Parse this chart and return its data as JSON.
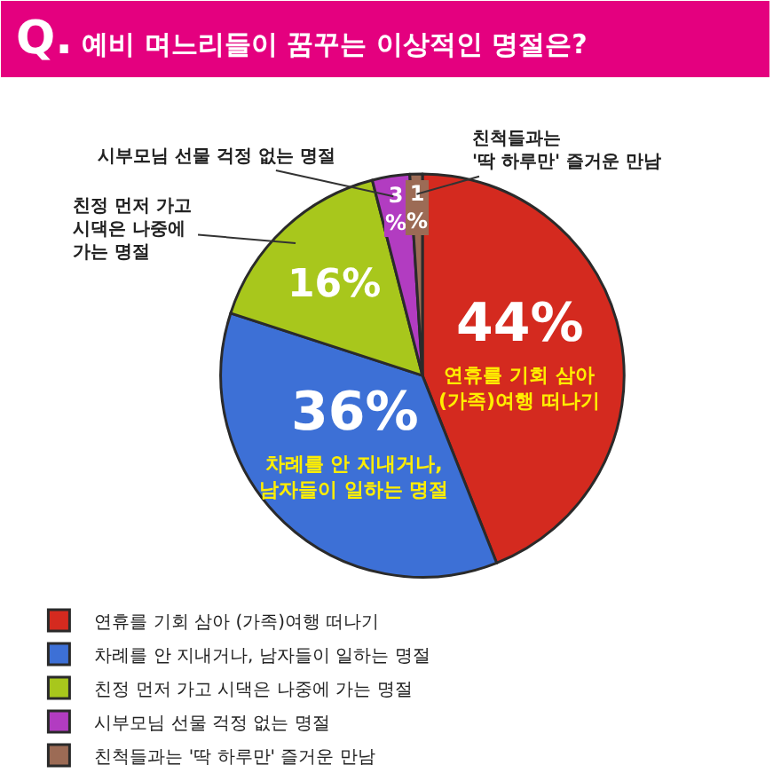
{
  "chart_data": {
    "type": "pie",
    "title": "Q. 예비 며느리들이 꿈꾸는 이상적인 명절은?",
    "categories": [
      "연휴를 기회 삼아 (가족)여행 떠나기",
      "차례를 안 지내거나, 남자들이 일하는 명절",
      "친정 먼저 가고 시댁은 나중에 가는 명절",
      "시부모님 선물 걱정 없는 명절",
      "친척들과는 '딱 하루만' 즐거운 만남"
    ],
    "values": [
      44,
      36,
      16,
      3,
      1
    ],
    "colors": [
      "#d42a1f",
      "#3d70d6",
      "#a8c71c",
      "#b23cc1",
      "#9c6b55"
    ],
    "value_labels": [
      "44%",
      "36%",
      "16%",
      "3%",
      "1%"
    ],
    "legend": "bottom left"
  }
}
